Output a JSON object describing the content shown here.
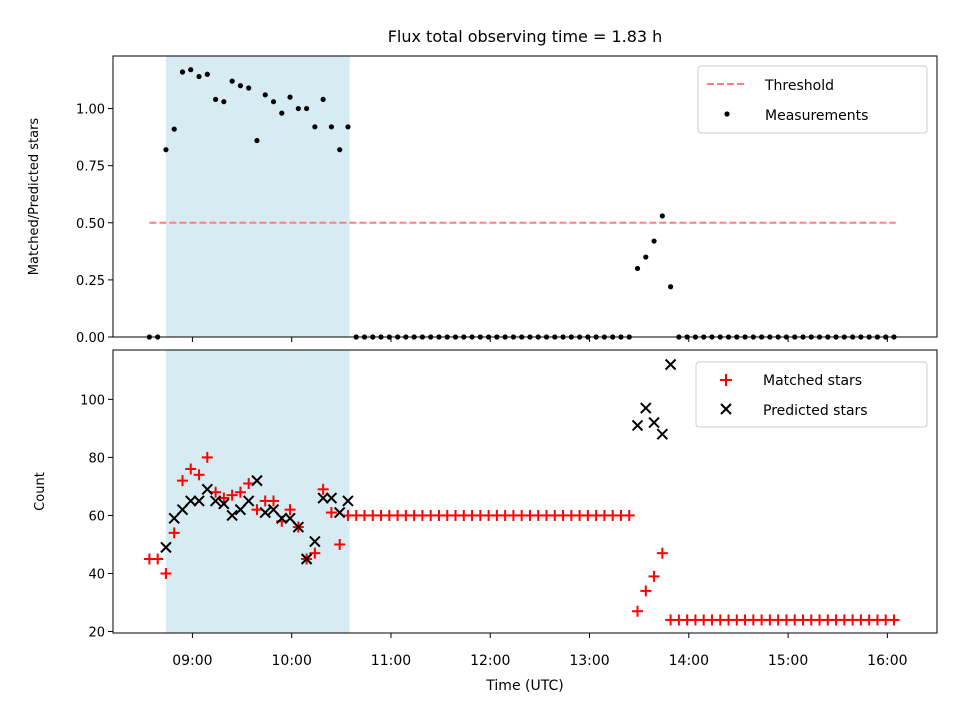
{
  "figure": {
    "title": "Flux total observing time = 1.83 h"
  },
  "chart_data": [
    {
      "type": "scatter",
      "panel": "top",
      "ylabel": "Matched/Predicted stars",
      "xlabel": "",
      "x_unit": "hours (UTC)",
      "xlim": [
        "08:12",
        "16:30"
      ],
      "ylim": [
        0,
        1.23
      ],
      "yticks": [
        "0.00",
        "0.25",
        "0.50",
        "0.75",
        "1.00"
      ],
      "ytick_values": [
        0,
        0.25,
        0.5,
        0.75,
        1.0
      ],
      "highlight_span": {
        "start": "08:44",
        "end": "10:35",
        "color": "#add8e6"
      },
      "legend_position": "upper right",
      "threshold": {
        "name": "Threshold",
        "value": 0.5,
        "x_start": "08:34",
        "x_end": "16:05",
        "color": "#ff7f7f",
        "style": "dashed"
      },
      "series": [
        {
          "name": "Measurements",
          "marker": "dot",
          "color": "#000000",
          "x": [
            "08:34",
            "08:39",
            "08:44",
            "08:49",
            "08:54",
            "08:59",
            "09:04",
            "09:09",
            "09:14",
            "09:19",
            "09:24",
            "09:29",
            "09:34",
            "09:39",
            "09:44",
            "09:49",
            "09:54",
            "09:59",
            "10:04",
            "10:09",
            "10:14",
            "10:19",
            "10:24",
            "10:29",
            "10:34",
            "10:39",
            "10:44",
            "10:49",
            "10:54",
            "10:59",
            "11:04",
            "11:09",
            "11:14",
            "11:19",
            "11:24",
            "11:29",
            "11:34",
            "11:39",
            "11:44",
            "11:49",
            "11:54",
            "11:59",
            "12:04",
            "12:09",
            "12:14",
            "12:19",
            "12:24",
            "12:29",
            "12:34",
            "12:39",
            "12:44",
            "12:49",
            "12:54",
            "12:59",
            "13:04",
            "13:09",
            "13:14",
            "13:19",
            "13:24",
            "13:29",
            "13:34",
            "13:39",
            "13:44",
            "13:49",
            "13:54",
            "13:59",
            "14:04",
            "14:09",
            "14:14",
            "14:19",
            "14:24",
            "14:29",
            "14:34",
            "14:39",
            "14:44",
            "14:49",
            "14:54",
            "14:59",
            "15:04",
            "15:09",
            "15:14",
            "15:19",
            "15:24",
            "15:29",
            "15:34",
            "15:39",
            "15:44",
            "15:49",
            "15:54",
            "15:59",
            "16:04"
          ],
          "y": [
            0.0,
            0.0,
            0.82,
            0.91,
            1.16,
            1.17,
            1.14,
            1.15,
            1.04,
            1.03,
            1.12,
            1.1,
            1.09,
            0.86,
            1.06,
            1.03,
            0.98,
            1.05,
            1.0,
            1.0,
            0.92,
            1.04,
            0.92,
            0.82,
            0.92,
            0,
            0,
            0,
            0,
            0,
            0,
            0,
            0,
            0,
            0,
            0,
            0,
            0,
            0,
            0,
            0,
            0,
            0,
            0,
            0,
            0,
            0,
            0,
            0,
            0,
            0,
            0,
            0,
            0,
            0,
            0,
            0,
            0,
            0,
            0.3,
            0.35,
            0.42,
            0.53,
            0.22,
            0,
            0,
            0,
            0,
            0,
            0,
            0,
            0,
            0,
            0,
            0,
            0,
            0,
            0,
            0,
            0,
            0,
            0,
            0,
            0,
            0,
            0,
            0,
            0,
            0,
            0,
            0
          ]
        }
      ]
    },
    {
      "type": "scatter",
      "panel": "bottom",
      "xlabel": "Time (UTC)",
      "ylabel": "Count",
      "xlim": [
        "08:12",
        "16:30"
      ],
      "ylim": [
        19.5,
        117
      ],
      "yticks": [
        "20",
        "40",
        "60",
        "80",
        "100"
      ],
      "ytick_values": [
        20,
        40,
        60,
        80,
        100
      ],
      "xticks": [
        "09:00",
        "10:00",
        "11:00",
        "12:00",
        "13:00",
        "14:00",
        "15:00",
        "16:00"
      ],
      "highlight_span": {
        "start": "08:44",
        "end": "10:35",
        "color": "#add8e6"
      },
      "legend_position": "upper right",
      "series": [
        {
          "name": "Matched stars",
          "marker": "plus",
          "color": "#ff0000",
          "x": [
            "08:34",
            "08:39",
            "08:44",
            "08:49",
            "08:54",
            "08:59",
            "09:04",
            "09:09",
            "09:14",
            "09:19",
            "09:24",
            "09:29",
            "09:34",
            "09:39",
            "09:44",
            "09:49",
            "09:54",
            "09:59",
            "10:04",
            "10:09",
            "10:14",
            "10:19",
            "10:24",
            "10:29",
            "10:34",
            "10:39",
            "10:44",
            "10:49",
            "10:54",
            "10:59",
            "11:04",
            "11:09",
            "11:14",
            "11:19",
            "11:24",
            "11:29",
            "11:34",
            "11:39",
            "11:44",
            "11:49",
            "11:54",
            "11:59",
            "12:04",
            "12:09",
            "12:14",
            "12:19",
            "12:24",
            "12:29",
            "12:34",
            "12:39",
            "12:44",
            "12:49",
            "12:54",
            "12:59",
            "13:04",
            "13:09",
            "13:14",
            "13:19",
            "13:24",
            "13:29",
            "13:34",
            "13:39",
            "13:44",
            "13:49",
            "13:54",
            "13:59",
            "14:04",
            "14:09",
            "14:14",
            "14:19",
            "14:24",
            "14:29",
            "14:34",
            "14:39",
            "14:44",
            "14:49",
            "14:54",
            "14:59",
            "15:04",
            "15:09",
            "15:14",
            "15:19",
            "15:24",
            "15:29",
            "15:34",
            "15:39",
            "15:44",
            "15:49",
            "15:54",
            "15:59",
            "16:04"
          ],
          "y": [
            45,
            45,
            40,
            54,
            72,
            76,
            74,
            80,
            68,
            66,
            67,
            68,
            71,
            62,
            65,
            65,
            58,
            62,
            56,
            45,
            47,
            69,
            61,
            50,
            60,
            60,
            60,
            60,
            60,
            60,
            60,
            60,
            60,
            60,
            60,
            60,
            60,
            60,
            60,
            60,
            60,
            60,
            60,
            60,
            60,
            60,
            60,
            60,
            60,
            60,
            60,
            60,
            60,
            60,
            60,
            60,
            60,
            60,
            60,
            27,
            34,
            39,
            47,
            24,
            24,
            24,
            24,
            24,
            24,
            24,
            24,
            24,
            24,
            24,
            24,
            24,
            24,
            24,
            24,
            24,
            24,
            24,
            24,
            24,
            24,
            24,
            24,
            24,
            24,
            24,
            24
          ]
        },
        {
          "name": "Predicted stars",
          "marker": "x",
          "color": "#000000",
          "x": [
            "08:44",
            "08:49",
            "08:54",
            "08:59",
            "09:04",
            "09:09",
            "09:14",
            "09:19",
            "09:24",
            "09:29",
            "09:34",
            "09:39",
            "09:44",
            "09:49",
            "09:54",
            "09:59",
            "10:04",
            "10:09",
            "10:14",
            "10:19",
            "10:24",
            "10:29",
            "10:34",
            "13:29",
            "13:34",
            "13:39",
            "13:44",
            "13:49"
          ],
          "y": [
            49,
            59,
            62,
            65,
            65,
            69,
            65,
            64,
            60,
            62,
            65,
            72,
            61,
            62,
            59,
            59,
            56,
            45,
            51,
            66,
            66,
            61,
            65,
            91,
            97,
            92,
            88,
            112
          ]
        }
      ]
    }
  ]
}
